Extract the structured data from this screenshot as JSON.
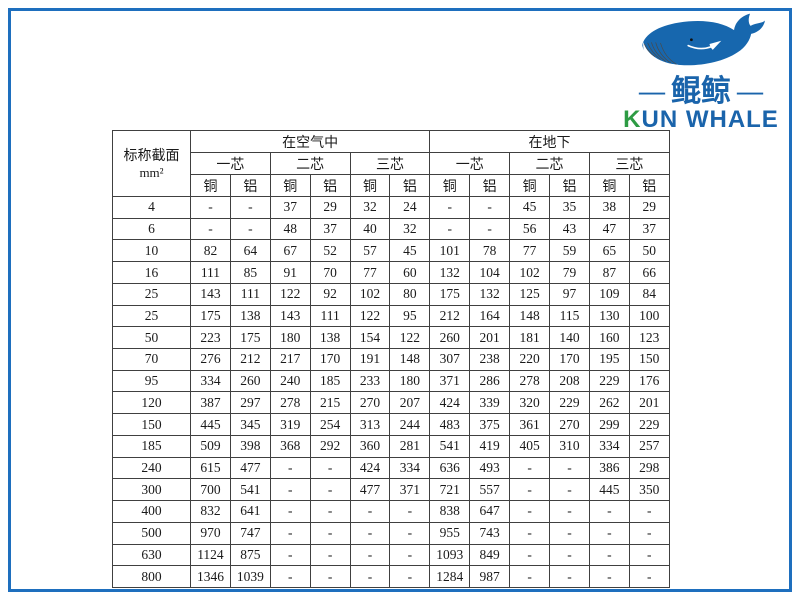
{
  "frame": {
    "border_color": "#1e6fbe"
  },
  "logo": {
    "whale_icon": "whale-icon",
    "dash_left": "—",
    "dash_right": "—",
    "cn_name": "鲲鲸",
    "en_first_letter": "K",
    "en_rest": "UN WHALE",
    "blue": "#1a64ab",
    "green": "#2d9b43"
  },
  "table": {
    "corner": {
      "line1": "标称截面",
      "line2": "mm²"
    },
    "group_headers": [
      "在空气中",
      "在地下"
    ],
    "core_headers": [
      "一芯",
      "二芯",
      "三芯",
      "一芯",
      "二芯",
      "三芯"
    ],
    "material_headers": [
      "铜",
      "铝",
      "铜",
      "铝",
      "铜",
      "铝",
      "铜",
      "铝",
      "铜",
      "铝",
      "铜",
      "铝"
    ],
    "rows": [
      {
        "size": "4",
        "values": [
          "-",
          "-",
          "37",
          "29",
          "32",
          "24",
          "-",
          "-",
          "45",
          "35",
          "38",
          "29"
        ]
      },
      {
        "size": "6",
        "values": [
          "-",
          "-",
          "48",
          "37",
          "40",
          "32",
          "-",
          "-",
          "56",
          "43",
          "47",
          "37"
        ]
      },
      {
        "size": "10",
        "values": [
          "82",
          "64",
          "67",
          "52",
          "57",
          "45",
          "101",
          "78",
          "77",
          "59",
          "65",
          "50"
        ]
      },
      {
        "size": "16",
        "values": [
          "111",
          "85",
          "91",
          "70",
          "77",
          "60",
          "132",
          "104",
          "102",
          "79",
          "87",
          "66"
        ]
      },
      {
        "size": "25",
        "values": [
          "143",
          "111",
          "122",
          "92",
          "102",
          "80",
          "175",
          "132",
          "125",
          "97",
          "109",
          "84"
        ]
      },
      {
        "size": "25",
        "values": [
          "175",
          "138",
          "143",
          "111",
          "122",
          "95",
          "212",
          "164",
          "148",
          "115",
          "130",
          "100"
        ]
      },
      {
        "size": "50",
        "values": [
          "223",
          "175",
          "180",
          "138",
          "154",
          "122",
          "260",
          "201",
          "181",
          "140",
          "160",
          "123"
        ]
      },
      {
        "size": "70",
        "values": [
          "276",
          "212",
          "217",
          "170",
          "191",
          "148",
          "307",
          "238",
          "220",
          "170",
          "195",
          "150"
        ]
      },
      {
        "size": "95",
        "values": [
          "334",
          "260",
          "240",
          "185",
          "233",
          "180",
          "371",
          "286",
          "278",
          "208",
          "229",
          "176"
        ]
      },
      {
        "size": "120",
        "values": [
          "387",
          "297",
          "278",
          "215",
          "270",
          "207",
          "424",
          "339",
          "320",
          "229",
          "262",
          "201"
        ]
      },
      {
        "size": "150",
        "values": [
          "445",
          "345",
          "319",
          "254",
          "313",
          "244",
          "483",
          "375",
          "361",
          "270",
          "299",
          "229"
        ]
      },
      {
        "size": "185",
        "values": [
          "509",
          "398",
          "368",
          "292",
          "360",
          "281",
          "541",
          "419",
          "405",
          "310",
          "334",
          "257"
        ]
      },
      {
        "size": "240",
        "values": [
          "615",
          "477",
          "-",
          "-",
          "424",
          "334",
          "636",
          "493",
          "-",
          "-",
          "386",
          "298"
        ]
      },
      {
        "size": "300",
        "values": [
          "700",
          "541",
          "-",
          "-",
          "477",
          "371",
          "721",
          "557",
          "-",
          "-",
          "445",
          "350"
        ]
      },
      {
        "size": "400",
        "values": [
          "832",
          "641",
          "-",
          "-",
          "-",
          "-",
          "838",
          "647",
          "-",
          "-",
          "-",
          "-"
        ]
      },
      {
        "size": "500",
        "values": [
          "970",
          "747",
          "-",
          "-",
          "-",
          "-",
          "955",
          "743",
          "-",
          "-",
          "-",
          "-"
        ]
      },
      {
        "size": "630",
        "values": [
          "1124",
          "875",
          "-",
          "-",
          "-",
          "-",
          "1093",
          "849",
          "-",
          "-",
          "-",
          "-"
        ]
      },
      {
        "size": "800",
        "values": [
          "1346",
          "1039",
          "-",
          "-",
          "-",
          "-",
          "1284",
          "987",
          "-",
          "-",
          "-",
          "-"
        ]
      }
    ]
  }
}
